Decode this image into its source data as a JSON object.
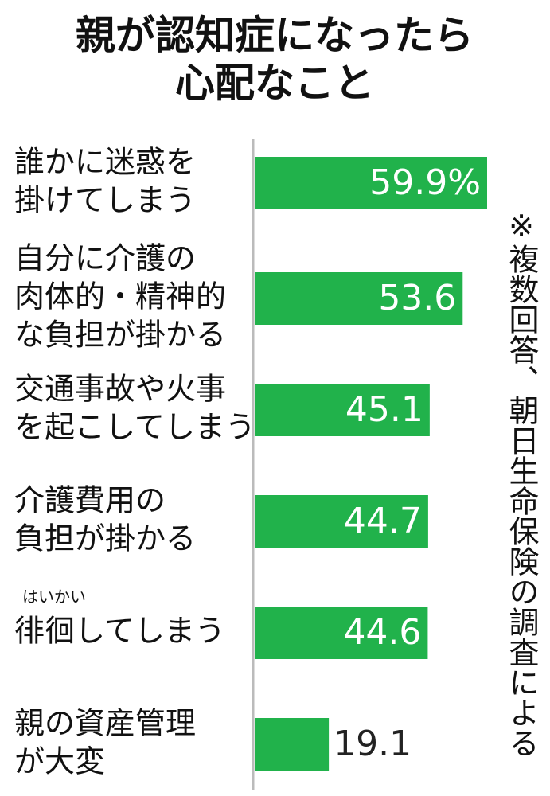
{
  "chart_data": {
    "type": "bar",
    "orientation": "horizontal",
    "title": [
      "親が認知症になったら",
      "心配なこと"
    ],
    "categories": [
      [
        "誰かに迷惑を",
        "掛けてしまう"
      ],
      [
        "自分に介護の",
        "肉体的・精神的",
        "な負担が掛かる"
      ],
      [
        "交通事故や火事",
        "を起こしてしまう"
      ],
      [
        "介護費用の",
        "負担が掛かる"
      ],
      [
        "徘徊してしまう"
      ],
      [
        "親の資産管理",
        "が大変"
      ]
    ],
    "ruby": {
      "category": 4,
      "text": "はいかい"
    },
    "values": [
      59.9,
      53.6,
      45.1,
      44.7,
      44.6,
      19.1
    ],
    "value_labels": [
      "59.9%",
      "53.6",
      "45.1",
      "44.7",
      "44.6",
      "19.1"
    ],
    "color": "#21b24b",
    "note": "※複数回答、朝日生命保険の調査による"
  }
}
